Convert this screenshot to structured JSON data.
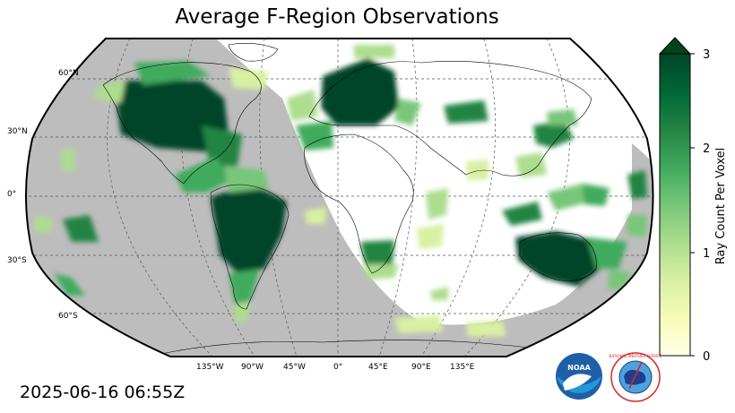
{
  "title": "Average F-Region Observations",
  "timestamp": "2025-06-16 06:55Z",
  "map": {
    "projection": "robinson",
    "graticule_step_degrees": 45,
    "latitude_labels": [
      "60°N",
      "30°N",
      "0°",
      "30°S",
      "60°S"
    ],
    "longitude_labels": [
      "135°W",
      "90°W",
      "45°W",
      "0°",
      "45°E",
      "90°E",
      "135°E"
    ],
    "night_shading_color": "#bdbdbd",
    "outline_color": "#000000"
  },
  "colorbar": {
    "label": "Ray Count Per Voxel",
    "ticks": [
      "0",
      "1",
      "2",
      "3"
    ],
    "range": [
      0,
      3
    ],
    "extend": "max",
    "colors": [
      "#ffffe5",
      "#f7fcb9",
      "#d9f0a3",
      "#addd8e",
      "#78c679",
      "#41ab5d",
      "#238443",
      "#006837",
      "#004529"
    ]
  },
  "observation_regions": [
    {
      "name": "North America",
      "level": 3
    },
    {
      "name": "South America",
      "level": 3
    },
    {
      "name": "Europe",
      "level": 3
    },
    {
      "name": "Australia",
      "level": 3
    },
    {
      "name": "Southern Africa",
      "level": 2.5
    },
    {
      "name": "East Asia",
      "level": 2
    },
    {
      "name": "Indonesia",
      "level": 2
    }
  ],
  "logos": [
    {
      "name": "noaa-logo",
      "text": "NOAA"
    },
    {
      "name": "nws-logo",
      "text": "NATIONAL WEATHER SERVICE"
    }
  ]
}
